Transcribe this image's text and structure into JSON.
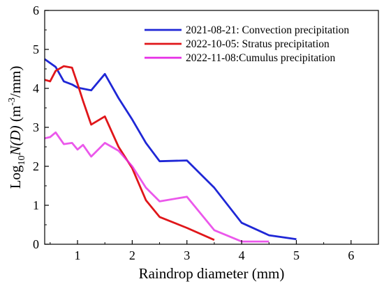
{
  "chart_data": {
    "type": "line",
    "xlabel": "Raindrop diameter (mm)",
    "ylabel_parts": [
      "Log",
      "10",
      "N(D)",
      " (m",
      "-3",
      "/mm)"
    ],
    "xlim": [
      0.4,
      6.5
    ],
    "ylim": [
      0,
      6
    ],
    "xticks": [
      1,
      2,
      3,
      4,
      5,
      6
    ],
    "yticks": [
      0,
      1,
      2,
      3,
      4,
      5,
      6
    ],
    "grid": false,
    "legend_position": "top-right",
    "series": [
      {
        "name": "2021-08-21: Convection precipitation",
        "color": "#1f27d6",
        "x": [
          0.4,
          0.6,
          0.75,
          0.9,
          1.0,
          1.25,
          1.5,
          1.75,
          2.0,
          2.25,
          2.5,
          3.0,
          3.5,
          4.0,
          4.5,
          5.0
        ],
        "y": [
          4.75,
          4.55,
          4.18,
          4.1,
          4.02,
          3.95,
          4.37,
          3.75,
          3.2,
          2.6,
          2.13,
          2.15,
          1.45,
          0.55,
          0.23,
          0.13
        ]
      },
      {
        "name": "2022-10-05: Stratus precipitation",
        "color": "#e0161a",
        "x": [
          0.4,
          0.5,
          0.6,
          0.75,
          0.9,
          1.0,
          1.1,
          1.25,
          1.5,
          1.75,
          2.0,
          2.25,
          2.5,
          3.0,
          3.5
        ],
        "y": [
          4.22,
          4.18,
          4.45,
          4.57,
          4.53,
          4.12,
          3.68,
          3.07,
          3.28,
          2.5,
          1.95,
          1.13,
          0.7,
          0.42,
          0.11
        ]
      },
      {
        "name": "2022-11-08:Cumulus precipitation",
        "color": "#e62ee6",
        "x": [
          0.4,
          0.5,
          0.6,
          0.75,
          0.9,
          1.0,
          1.1,
          1.25,
          1.5,
          1.75,
          2.0,
          2.25,
          2.5,
          3.0,
          3.5,
          4.0,
          4.5
        ],
        "y": [
          2.72,
          2.75,
          2.87,
          2.57,
          2.6,
          2.43,
          2.55,
          2.25,
          2.6,
          2.4,
          2.0,
          1.45,
          1.1,
          1.22,
          0.36,
          0.07,
          0.07
        ]
      }
    ]
  }
}
